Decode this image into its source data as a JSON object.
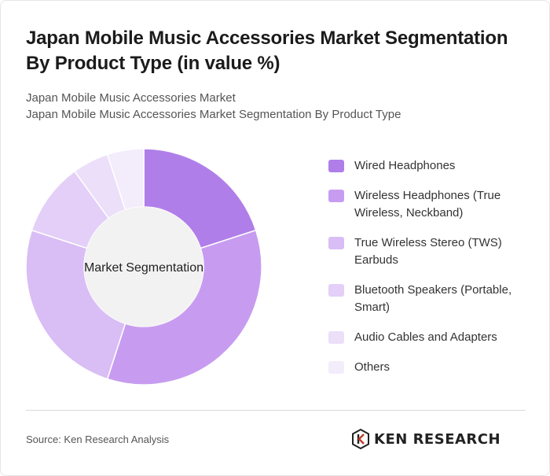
{
  "header": {
    "title": "Japan Mobile Music Accessories Market Segmentation By Product Type (in value %)",
    "subtitle_line1": "Japan Mobile Music Accessories Market",
    "subtitle_line2": "Japan Mobile Music Accessories Market Segmentation By Product Type"
  },
  "chart_data": {
    "type": "pie",
    "variant": "donut",
    "center_label": "Market Segmentation",
    "categories": [
      "Wired Headphones",
      "Wireless Headphones (True Wireless, Neckband)",
      "True Wireless Stereo (TWS) Earbuds",
      "Bluetooth Speakers (Portable, Smart)",
      "Audio Cables and Adapters",
      "Others"
    ],
    "values": [
      20,
      35,
      25,
      10,
      5,
      5
    ],
    "colors": [
      "#b07ee9",
      "#c79cf0",
      "#d9bdf5",
      "#e3cff7",
      "#ecdff9",
      "#f3ecfb"
    ],
    "legend_position": "right"
  },
  "footer": {
    "source": "Source: Ken Research Analysis",
    "brand": "KEN RESEARCH",
    "brand_icon": "ken-research-logo-icon"
  }
}
